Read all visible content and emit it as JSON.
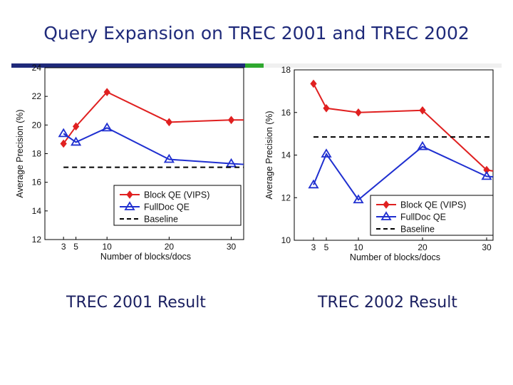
{
  "slide": {
    "title": "Query Expansion on TREC 2001 and TREC 2002",
    "caption_left": "TREC 2001 Result",
    "caption_right": "TREC 2002 Result",
    "bar_colors": [
      "#1f2a7a",
      "#2fa82f",
      "#f4f4f4"
    ]
  },
  "chart_data": [
    {
      "type": "line",
      "title": "TREC 2001",
      "xlabel": "Number of blocks/docs",
      "ylabel": "Average Precision (%)",
      "xlim": [
        0,
        32
      ],
      "ylim": [
        12,
        24
      ],
      "xticks": [
        3,
        5,
        10,
        20,
        30
      ],
      "yticks": [
        12,
        14,
        16,
        18,
        20,
        22,
        24
      ],
      "legend_position": "lower-right",
      "series": [
        {
          "name": "Block QE (VIPS)",
          "color": "#e02020",
          "marker": "diamond",
          "dash": "",
          "x": [
            3,
            5,
            10,
            20,
            30,
            32
          ],
          "y": [
            18.7,
            19.9,
            22.3,
            20.2,
            20.35,
            20.35
          ]
        },
        {
          "name": "FullDoc QE",
          "color": "#1f2fd0",
          "marker": "triangle",
          "dash": "",
          "x": [
            3,
            5,
            10,
            20,
            30,
            32
          ],
          "y": [
            19.4,
            18.8,
            19.8,
            17.6,
            17.3,
            17.25
          ]
        },
        {
          "name": "Baseline",
          "color": "#000000",
          "marker": "none",
          "dash": "7,5",
          "x": [
            3,
            32
          ],
          "y": [
            17.05,
            17.05
          ]
        }
      ]
    },
    {
      "type": "line",
      "title": "TREC 2002",
      "xlabel": "Number of blocks/docs",
      "ylabel": "Average Precision (%)",
      "xlim": [
        0,
        31
      ],
      "ylim": [
        10,
        18
      ],
      "xticks": [
        3,
        5,
        10,
        20,
        30
      ],
      "yticks": [
        10,
        12,
        14,
        16,
        18
      ],
      "legend_position": "lower-right",
      "series": [
        {
          "name": "Block QE (VIPS)",
          "color": "#e02020",
          "marker": "diamond",
          "dash": "",
          "x": [
            3,
            5,
            10,
            20,
            30,
            31
          ],
          "y": [
            17.35,
            16.2,
            16.0,
            16.1,
            13.3,
            13.25
          ]
        },
        {
          "name": "FullDoc QE",
          "color": "#1f2fd0",
          "marker": "triangle",
          "dash": "",
          "x": [
            3,
            5,
            10,
            20,
            30,
            31
          ],
          "y": [
            12.6,
            14.05,
            11.9,
            14.4,
            13.0,
            12.98
          ]
        },
        {
          "name": "Baseline",
          "color": "#000000",
          "marker": "none",
          "dash": "7,5",
          "x": [
            3,
            31
          ],
          "y": [
            14.85,
            14.85
          ]
        }
      ]
    }
  ]
}
